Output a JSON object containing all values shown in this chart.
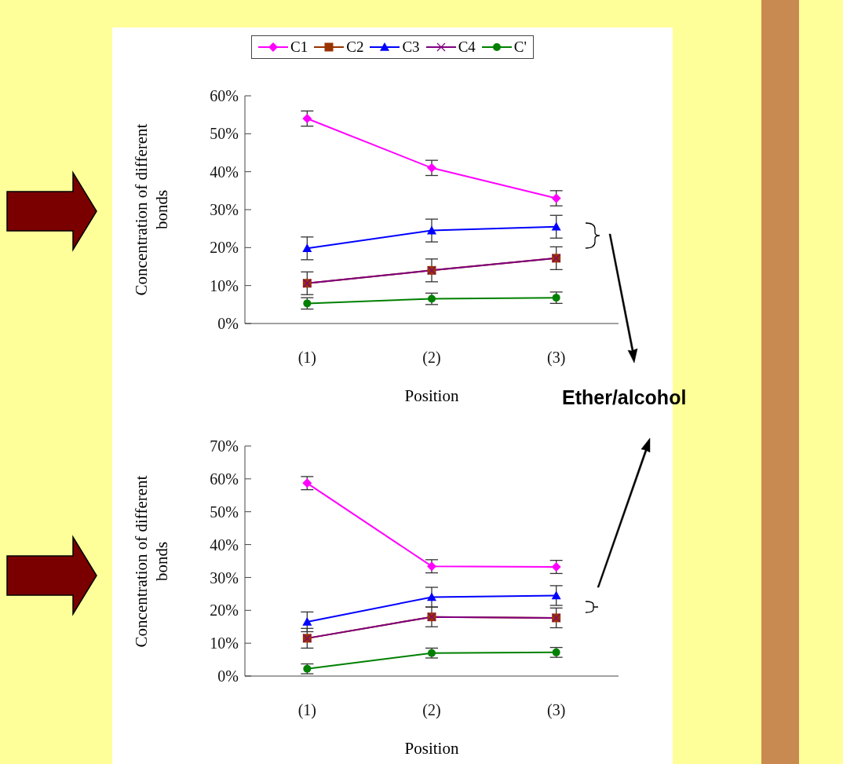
{
  "chart_data": [
    {
      "type": "line",
      "categories": [
        "(1)",
        "(2)",
        "(3)"
      ],
      "xlabel": "Position",
      "ylabel": "Concentration of different bonds",
      "ylim": [
        0,
        60
      ],
      "yticks": [
        {
          "value": 0,
          "label": "0%"
        },
        {
          "value": 10,
          "label": "10%"
        },
        {
          "value": 20,
          "label": "20%"
        },
        {
          "value": 30,
          "label": "30%"
        },
        {
          "value": 40,
          "label": "40%"
        },
        {
          "value": 50,
          "label": "50%"
        },
        {
          "value": 60,
          "label": "60%"
        }
      ],
      "grid": false,
      "legend": "top",
      "line_style": "solid",
      "series": [
        {
          "name": "C1",
          "color": "#ff00ff",
          "marker": "diamond",
          "values": [
            54,
            41,
            33
          ],
          "errors": [
            2,
            2,
            2
          ]
        },
        {
          "name": "C2",
          "color": "#993300",
          "marker": "square",
          "values": [
            10.6,
            14,
            17.2
          ],
          "errors": [
            3,
            3,
            3
          ]
        },
        {
          "name": "C3",
          "color": "#0000ff",
          "marker": "triangle",
          "values": [
            19.8,
            24.5,
            25.5
          ],
          "errors": [
            3,
            3,
            3
          ]
        },
        {
          "name": "C4",
          "color": "#800080",
          "marker": "cross",
          "values": [
            10.6,
            14,
            17.2
          ]
        },
        {
          "name": "C'",
          "color": "#008000",
          "marker": "circle",
          "values": [
            5.3,
            6.5,
            6.8
          ],
          "errors": [
            1.5,
            1.5,
            1.5
          ]
        }
      ],
      "annotations": [
        "Ether/alcohol"
      ]
    },
    {
      "type": "line",
      "categories": [
        "(1)",
        "(2)",
        "(3)"
      ],
      "xlabel": "Position",
      "ylabel": "Concentration of different bonds",
      "ylim": [
        0,
        70
      ],
      "yticks": [
        {
          "value": 0,
          "label": "0%"
        },
        {
          "value": 10,
          "label": "10%"
        },
        {
          "value": 20,
          "label": "20%"
        },
        {
          "value": 30,
          "label": "30%"
        },
        {
          "value": 40,
          "label": "40%"
        },
        {
          "value": 50,
          "label": "50%"
        },
        {
          "value": 60,
          "label": "60%"
        },
        {
          "value": 70,
          "label": "70%"
        }
      ],
      "grid": false,
      "line_style": "solid",
      "series": [
        {
          "color": "#ff00ff",
          "marker": "diamond",
          "values": [
            58.7,
            33.4,
            33.2
          ],
          "errors": [
            2,
            2,
            2
          ]
        },
        {
          "color": "#993300",
          "marker": "square",
          "values": [
            11.5,
            18,
            17.7
          ],
          "errors": [
            3,
            3,
            3
          ]
        },
        {
          "color": "#0000ff",
          "marker": "triangle",
          "values": [
            16.5,
            24,
            24.5
          ],
          "errors": [
            3,
            3,
            3
          ]
        },
        {
          "color": "#800080",
          "marker": "cross",
          "values": [
            11.5,
            18,
            17.7
          ]
        },
        {
          "color": "#008000",
          "marker": "circle",
          "values": [
            2.2,
            7,
            7.2
          ],
          "errors": [
            1.5,
            1.5,
            1.5
          ]
        }
      ]
    }
  ]
}
